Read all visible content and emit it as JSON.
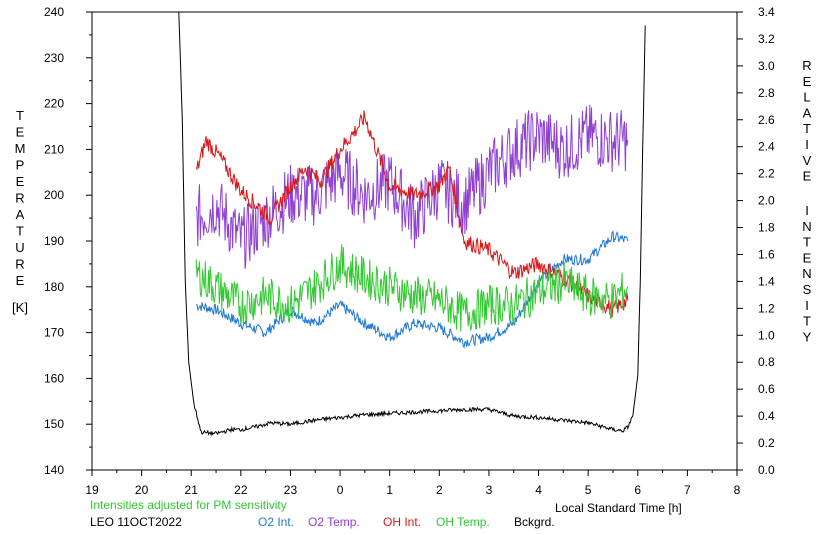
{
  "chart_data": {
    "type": "line",
    "title": "",
    "xlabel": "Local Standard Time [h]",
    "ylabel_left_letters": [
      "T",
      "E",
      "M",
      "P",
      "E",
      "R",
      "A",
      "T",
      "U",
      "R",
      "E"
    ],
    "ylabel_left_unit": "[K]",
    "ylabel_right_word1": [
      "R",
      "E",
      "L",
      "A",
      "T",
      "I",
      "V",
      "E"
    ],
    "ylabel_right_word2": [
      "I",
      "N",
      "T",
      "E",
      "N",
      "S",
      "I",
      "T",
      "Y"
    ],
    "x_axis": {
      "min": 19,
      "max": 32
    },
    "x_tick_labels": [
      "19",
      "20",
      "21",
      "22",
      "23",
      "0",
      "1",
      "2",
      "3",
      "4",
      "5",
      "6",
      "7",
      "8"
    ],
    "y_left": {
      "min": 140,
      "max": 240,
      "ticks": [
        "140",
        "150",
        "160",
        "170",
        "180",
        "190",
        "200",
        "210",
        "220",
        "230",
        "240"
      ]
    },
    "y_right": {
      "min": 0.0,
      "max": 3.4,
      "ticks": [
        "0.0",
        "0.2",
        "0.4",
        "0.6",
        "0.8",
        "1.0",
        "1.2",
        "1.4",
        "1.6",
        "1.8",
        "2.0",
        "2.2",
        "2.4",
        "2.6",
        "2.8",
        "3.0",
        "3.2",
        "3.4"
      ]
    },
    "grid": false,
    "series": [
      {
        "name": "O2 Int.",
        "axis": "left",
        "color": "#1e78d2",
        "x": [
          21.1,
          21.5,
          22.0,
          22.5,
          23.0,
          23.5,
          24.0,
          24.5,
          25.0,
          25.5,
          26.0,
          26.5,
          27.0,
          27.5,
          28.0,
          28.5,
          29.0,
          29.5,
          29.8
        ],
        "y": [
          176,
          175,
          172,
          170,
          175,
          172,
          176,
          172,
          169,
          172,
          171,
          168,
          169,
          172,
          181,
          186,
          186,
          191,
          190
        ]
      },
      {
        "name": "O2 Temp.",
        "axis": "left",
        "color": "#9040d0",
        "x": [
          21.1,
          21.5,
          22.0,
          22.5,
          23.0,
          23.5,
          24.0,
          24.5,
          25.0,
          25.5,
          26.0,
          26.5,
          27.0,
          27.5,
          28.0,
          28.5,
          29.0,
          29.5,
          29.8
        ],
        "y": [
          195,
          198,
          190,
          195,
          200,
          200,
          205,
          200,
          203,
          195,
          202,
          198,
          205,
          210,
          213,
          210,
          213,
          212,
          212
        ]
      },
      {
        "name": "OH Int.",
        "axis": "left",
        "color": "#d81818",
        "x": [
          21.1,
          21.3,
          21.6,
          22.0,
          22.3,
          22.6,
          23.0,
          23.3,
          23.6,
          24.0,
          24.3,
          24.5,
          24.8,
          25.0,
          25.5,
          26.0,
          26.2,
          26.5,
          27.0,
          27.5,
          28.0,
          28.5,
          29.0,
          29.5,
          29.8
        ],
        "y": [
          205,
          212,
          208,
          201,
          198,
          195,
          202,
          206,
          203,
          210,
          214,
          217,
          208,
          202,
          200,
          202,
          206,
          190,
          188,
          183,
          185,
          182,
          178,
          175,
          177
        ]
      },
      {
        "name": "OH Temp.",
        "axis": "left",
        "color": "#32c832",
        "x": [
          21.1,
          21.5,
          22.0,
          22.5,
          23.0,
          23.5,
          24.0,
          24.5,
          25.0,
          25.5,
          26.0,
          26.5,
          27.0,
          27.5,
          28.0,
          28.5,
          29.0,
          29.5,
          29.8
        ],
        "y": [
          183,
          180,
          176,
          178,
          176,
          180,
          185,
          182,
          180,
          178,
          177,
          174,
          176,
          176,
          179,
          181,
          178,
          177,
          180
        ]
      },
      {
        "name": "Bckgrd.",
        "axis": "right",
        "color": "#000000",
        "x": [
          20.75,
          20.82,
          20.88,
          20.95,
          21.05,
          21.2,
          21.5,
          21.8,
          22.0,
          22.3,
          22.6,
          23.0,
          23.5,
          24.0,
          24.5,
          25.0,
          25.5,
          26.0,
          26.5,
          27.0,
          27.5,
          28.0,
          28.5,
          29.0,
          29.5,
          29.7,
          29.8,
          29.9,
          30.0,
          30.05,
          30.1,
          30.15
        ],
        "y": [
          3.4,
          2.6,
          1.4,
          0.8,
          0.5,
          0.28,
          0.27,
          0.3,
          0.3,
          0.32,
          0.35,
          0.34,
          0.37,
          0.39,
          0.41,
          0.42,
          0.43,
          0.44,
          0.45,
          0.45,
          0.4,
          0.39,
          0.37,
          0.35,
          0.3,
          0.29,
          0.32,
          0.4,
          0.7,
          1.4,
          2.4,
          3.3
        ]
      }
    ]
  },
  "footer": {
    "note": "Intensities adjusted for PM sensitivity",
    "station": "LEO 11OCT2022",
    "legend": [
      {
        "label": "O2 Int.",
        "color": "#1e78d2"
      },
      {
        "label": "O2 Temp.",
        "color": "#9040d0"
      },
      {
        "label": "OH Int.",
        "color": "#d81818"
      },
      {
        "label": "OH Temp.",
        "color": "#32c832"
      },
      {
        "label": "Bckgrd.",
        "color": "#000000"
      }
    ],
    "note_color": "#32c832"
  }
}
